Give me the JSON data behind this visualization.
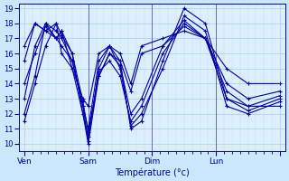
{
  "title": "Température (°c)",
  "xlabel": "Température (°c)",
  "bg_color": "#cce8ff",
  "plot_bg_color": "#ddeeff",
  "line_color": "#0000aa",
  "marker": "+",
  "ylim": [
    10,
    19
  ],
  "yticks": [
    10,
    11,
    12,
    13,
    14,
    15,
    16,
    17,
    18,
    19
  ],
  "day_positions": [
    0,
    24,
    48,
    72,
    96
  ],
  "day_labels": [
    "Ven",
    "Sam",
    "Dim",
    "Lun"
  ],
  "series": [
    [
      11.5,
      14.0,
      16.5,
      18.0,
      17.2,
      16.0,
      12.0,
      10.0,
      14.5,
      16.0,
      15.5,
      11.0,
      11.5,
      15.5,
      19.0,
      18.0,
      13.0,
      12.5,
      12.5
    ],
    [
      12.0,
      14.5,
      18.0,
      17.5,
      17.0,
      15.5,
      12.5,
      10.2,
      15.0,
      16.5,
      15.0,
      11.2,
      12.0,
      15.0,
      18.5,
      17.5,
      12.5,
      12.0,
      12.8
    ],
    [
      13.0,
      16.5,
      18.0,
      17.0,
      17.5,
      15.0,
      12.0,
      10.5,
      14.8,
      15.5,
      14.5,
      11.5,
      12.5,
      16.0,
      18.0,
      17.0,
      13.0,
      12.2,
      13.0
    ],
    [
      14.0,
      16.0,
      17.8,
      17.0,
      17.5,
      16.0,
      12.8,
      10.8,
      14.5,
      16.0,
      15.2,
      12.0,
      13.0,
      16.5,
      18.2,
      17.0,
      13.5,
      12.5,
      13.2
    ],
    [
      15.5,
      18.0,
      17.5,
      17.0,
      16.5,
      15.5,
      12.5,
      11.0,
      15.5,
      16.5,
      15.5,
      13.5,
      16.0,
      16.5,
      17.8,
      17.0,
      14.0,
      13.0,
      13.5
    ],
    [
      16.5,
      18.0,
      17.5,
      18.0,
      16.0,
      15.0,
      13.0,
      12.5,
      16.0,
      16.5,
      16.0,
      14.0,
      16.5,
      17.0,
      17.5,
      17.0,
      15.0,
      14.0,
      14.0
    ]
  ],
  "series_x": [
    0,
    4,
    8,
    12,
    14,
    18,
    22,
    24,
    28,
    32,
    36,
    40,
    44,
    52,
    60,
    68,
    76,
    84,
    96
  ]
}
